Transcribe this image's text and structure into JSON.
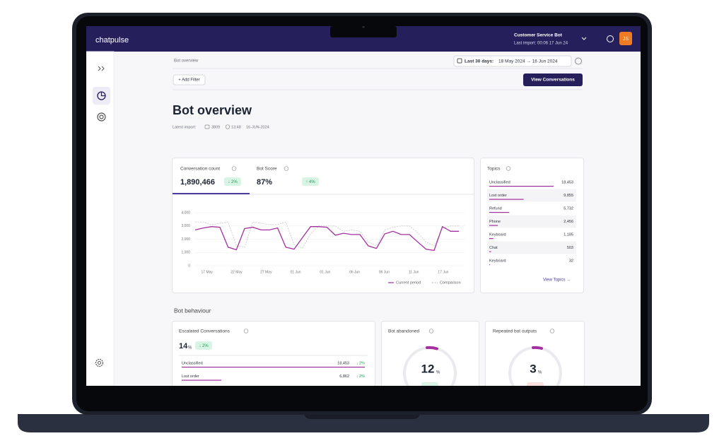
{
  "nav": {
    "logo": "chatpulse",
    "bot_name": "Customer Service Bot",
    "last_import": "Last import: 00:06 17 Jun 24",
    "avatar": "JS"
  },
  "breadcrumb": "Bot overview",
  "date_range": {
    "label": "Last 30 days:",
    "range": "18 May 2024 → 16 Jun 2024"
  },
  "add_filter": "+ Add Filter",
  "view_conversations": "View Conversations",
  "title": "Bot overview",
  "import_info": {
    "label": "Latest import:",
    "conversations": "3809",
    "time": "13:48",
    "date": "16-JUN-2024"
  },
  "kpis": [
    {
      "label": "Conversation count",
      "value": "1,890,466",
      "change": "↓ 2%"
    },
    {
      "label": "Bot Score",
      "value": "87%",
      "change": "↑ 4%"
    }
  ],
  "chart": {
    "type": "line",
    "ylim": [
      0,
      4000
    ],
    "yticks": [
      0,
      {
        "value": 1000,
        "label": "1,000"
      },
      {
        "value": 2000,
        "label": "2,000"
      },
      {
        "value": 3000,
        "label": "3,000"
      },
      {
        "value": 4000,
        "label": "4,000"
      }
    ],
    "xticks": [
      "17 May",
      "22 May",
      "27 May",
      "01 Jun",
      "01 Jun",
      "06 Jun",
      "06 Jun",
      "11 Jun",
      "17 Jun"
    ],
    "series": [
      {
        "name": "Current period",
        "color": "#a3309f",
        "dashed": false,
        "values": [
          2700,
          2850,
          2950,
          2900,
          1400,
          1200,
          2800,
          2900,
          2700,
          2700,
          2850,
          1400,
          1250,
          2100,
          2950,
          2950,
          2900,
          2300,
          2450,
          2350,
          2350,
          1500,
          1300,
          2400,
          2600,
          2350,
          2350,
          1800,
          1250,
          1150,
          2950,
          2600,
          2600
        ]
      },
      {
        "name": "Comparison",
        "color": "#c4c4cc",
        "dashed": true,
        "values": [
          3300,
          3300,
          3100,
          3200,
          3300,
          1500,
          1400,
          3300,
          3200,
          3100,
          3100,
          3300,
          1600,
          1300,
          2400,
          3000,
          3000,
          3000,
          2600,
          2700,
          2600,
          1800,
          1500,
          2700,
          2900,
          3000,
          3000,
          2500,
          1800,
          1500,
          2800,
          3000,
          3000
        ]
      }
    ]
  },
  "topics": {
    "title": "Topics",
    "labels": [
      "Unclassified",
      "Lost order",
      "Refund",
      "Phone",
      "Keyboard",
      "Chat",
      "Keyboard"
    ],
    "counts": [
      18453,
      9855,
      5732,
      2456,
      1185,
      503,
      32
    ],
    "count_labels": [
      "18,453",
      "9,855",
      "5,732",
      "2,456",
      "1,185",
      "503",
      "32"
    ],
    "link": "View Topics →"
  },
  "section": "Bot behaviour",
  "escalated": {
    "title": "Escalated Conversations",
    "value": "14",
    "unit": "%",
    "change": "↓ 2%",
    "rows": [
      {
        "label": "Unclassified",
        "value": "18,453",
        "change": "↓ 2%"
      },
      {
        "label": "Lost order",
        "value": "6,862",
        "change": "↓ 2%"
      }
    ]
  },
  "abandoned": {
    "title": "Bot abandoned",
    "value": "12",
    "unit": "%"
  },
  "repeated": {
    "title": "Repeated bot outputs",
    "value": "3",
    "unit": "%"
  }
}
